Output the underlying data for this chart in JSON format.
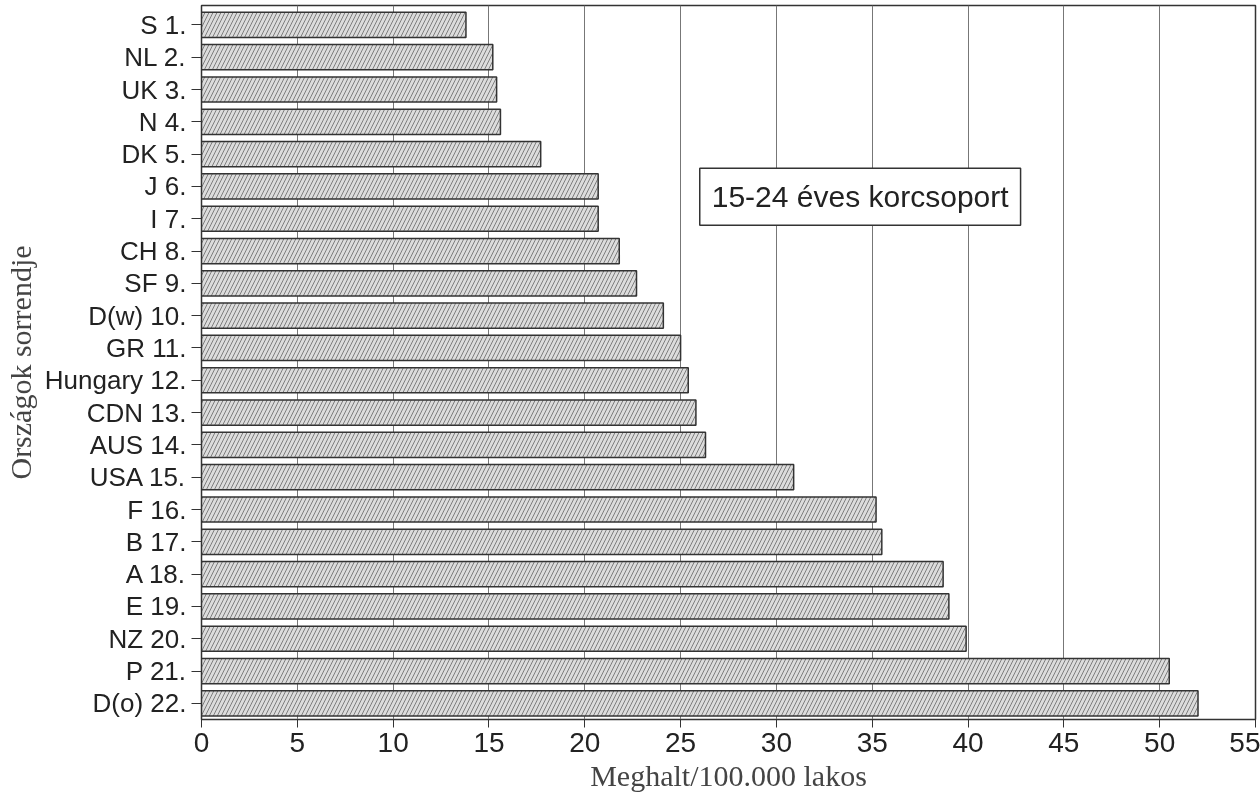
{
  "chart_data": {
    "type": "bar",
    "orientation": "horizontal",
    "categories": [
      "S 1.",
      "NL 2.",
      "UK 3.",
      "N 4.",
      "DK 5.",
      "J 6.",
      "I 7.",
      "CH 8.",
      "SF 9.",
      "D(w) 10.",
      "GR 11.",
      "Hungary 12.",
      "CDN 13.",
      "AUS 14.",
      "USA 15.",
      "F 16.",
      "B 17.",
      "A 18.",
      "E 19.",
      "NZ 20.",
      "P 21.",
      "D(o) 22."
    ],
    "values": [
      13.8,
      15.2,
      15.4,
      15.6,
      17.7,
      20.7,
      20.7,
      21.8,
      22.7,
      24.1,
      25.0,
      25.4,
      25.8,
      26.3,
      30.9,
      35.2,
      35.5,
      38.7,
      39.0,
      39.9,
      50.5,
      52.0
    ],
    "color": "#dcdcdc",
    "xlim": [
      0,
      55
    ],
    "xticks": [
      0,
      5,
      10,
      15,
      20,
      25,
      30,
      35,
      40,
      45,
      50,
      55
    ],
    "xlabel": "Meghalt/100.000 lakos",
    "ylabel": "Országok sorrendje",
    "annotations": [
      "15-24 éves korcsoport"
    ],
    "grid": "x"
  }
}
